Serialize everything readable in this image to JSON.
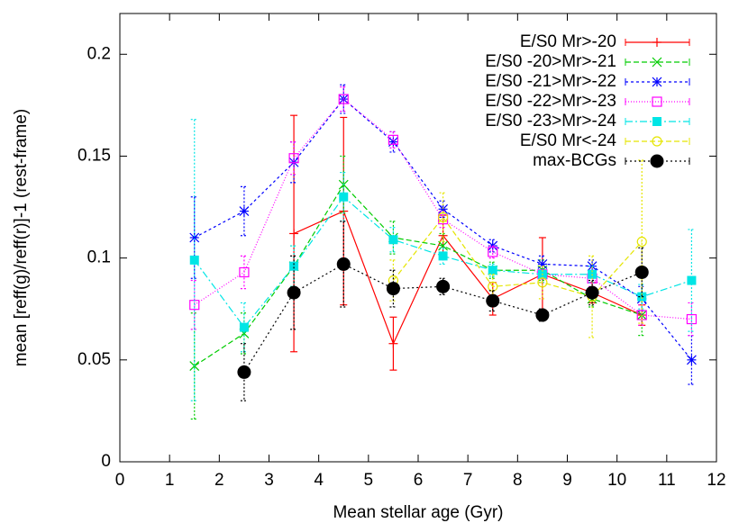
{
  "chart_data": {
    "type": "line",
    "x_label": "Mean stellar age (Gyr)",
    "y_label": "mean [reff(g)/reff(r)]-1 (rest-frame)",
    "xlim": [
      0,
      12
    ],
    "xticks": [
      0,
      1,
      2,
      3,
      4,
      5,
      6,
      7,
      8,
      9,
      10,
      11,
      12
    ],
    "ylim": [
      0,
      0.22
    ],
    "yticks": [
      0,
      0.05,
      0.1,
      0.15,
      0.2
    ],
    "legend": "top-right",
    "series": [
      {
        "name": "E/S0 Mr>-20",
        "color": "#ff0000",
        "marker": "plus",
        "dash": "none",
        "x": [
          3.5,
          4.5,
          5.5,
          6.5,
          7.5,
          8.5,
          9.5,
          10.5
        ],
        "values": [
          0.112,
          0.123,
          0.058,
          0.111,
          0.08,
          0.092,
          0.083,
          0.072
        ],
        "errors": [
          0.058,
          0.046,
          0.013,
          0.01,
          0.008,
          0.018,
          0.005,
          0.005
        ]
      },
      {
        "name": "E/S0 -20>Mr>-21",
        "color": "#00cc00",
        "marker": "cross",
        "dash": "6,3",
        "x": [
          1.5,
          2.5,
          3.5,
          4.5,
          5.5,
          6.5,
          7.5,
          8.5,
          9.5,
          10.5
        ],
        "values": [
          0.047,
          0.063,
          0.096,
          0.136,
          0.11,
          0.106,
          0.094,
          0.094,
          0.08,
          0.072
        ],
        "errors": [
          0.026,
          0.01,
          0.01,
          0.014,
          0.008,
          0.006,
          0.004,
          0.005,
          0.004,
          0.01
        ]
      },
      {
        "name": "E/S0 -21>Mr>-22",
        "color": "#0000ff",
        "marker": "star",
        "dash": "3,3",
        "x": [
          1.5,
          2.5,
          3.5,
          4.5,
          5.5,
          6.5,
          7.5,
          8.5,
          9.5,
          10.5,
          11.5
        ],
        "values": [
          0.11,
          0.123,
          0.147,
          0.178,
          0.157,
          0.124,
          0.106,
          0.097,
          0.096,
          0.08,
          0.05
        ],
        "errors": [
          0.02,
          0.012,
          0.01,
          0.007,
          0.005,
          0.004,
          0.003,
          0.004,
          0.003,
          0.006,
          0.012
        ]
      },
      {
        "name": "E/S0 -22>Mr>-23",
        "color": "#ff00ff",
        "marker": "open-square",
        "dash": "1,2",
        "x": [
          1.5,
          2.5,
          3.5,
          4.5,
          5.5,
          6.5,
          7.5,
          8.5,
          9.5,
          10.5,
          11.5
        ],
        "values": [
          0.077,
          0.093,
          0.149,
          0.178,
          0.158,
          0.119,
          0.103,
          0.092,
          0.09,
          0.072,
          0.07
        ],
        "errors": [
          0.012,
          0.008,
          0.008,
          0.006,
          0.004,
          0.004,
          0.003,
          0.004,
          0.004,
          0.005,
          0.008
        ]
      },
      {
        "name": "E/S0 -23>Mr>-24",
        "color": "#00e5e5",
        "marker": "filled-square",
        "dash": "8,3,2,3",
        "x": [
          1.5,
          2.5,
          3.5,
          4.5,
          5.5,
          6.5,
          7.5,
          8.5,
          9.5,
          10.5,
          11.5
        ],
        "values": [
          0.099,
          0.066,
          0.096,
          0.13,
          0.109,
          0.101,
          0.094,
          0.092,
          0.092,
          0.081,
          0.089
        ],
        "errors": [
          0.069,
          0.012,
          0.01,
          0.012,
          0.006,
          0.004,
          0.003,
          0.004,
          0.004,
          0.006,
          0.025
        ]
      },
      {
        "name": "E/S0 Mr<-24",
        "color": "#e5e500",
        "marker": "open-circle",
        "dash": "6,3",
        "x": [
          5.5,
          6.5,
          7.5,
          8.5,
          9.5,
          10.5
        ],
        "values": [
          0.089,
          0.12,
          0.086,
          0.088,
          0.081,
          0.108
        ],
        "errors": [
          0.01,
          0.012,
          0.006,
          0.008,
          0.02,
          0.04
        ]
      },
      {
        "name": "max-BCGs",
        "color": "#000000",
        "marker": "filled-circle",
        "dash": "2,3",
        "x": [
          2.5,
          3.5,
          4.5,
          5.5,
          6.5,
          7.5,
          8.5,
          9.5,
          10.5
        ],
        "values": [
          0.044,
          0.083,
          0.097,
          0.085,
          0.086,
          0.079,
          0.072,
          0.083,
          0.093
        ],
        "errors": [
          0.014,
          0.018,
          0.021,
          0.009,
          0.004,
          0.005,
          0.003,
          0.006,
          0.012
        ]
      }
    ]
  }
}
